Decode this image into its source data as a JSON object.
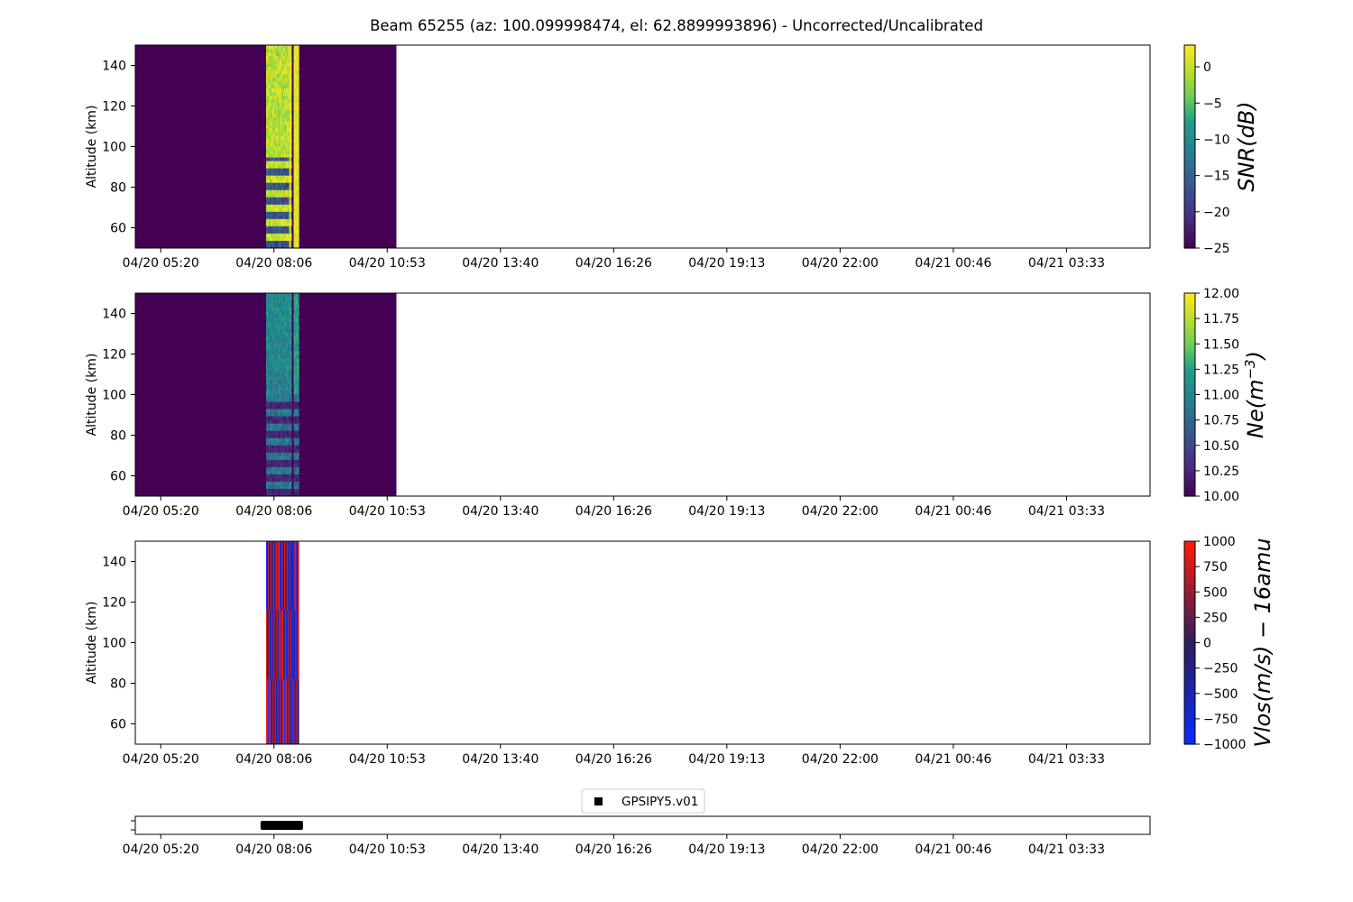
{
  "title": "Beam 65255 (az: 100.099998474, el: 62.8899993896) - Uncorrected/Uncalibrated",
  "colors": {
    "viridis_low": "#440154",
    "viridis_high": "#fde725",
    "vel_low": "#0a2cff",
    "vel_mid": "#2b1f5e",
    "vel_high": "#ff1a0a"
  },
  "chart_data": [
    {
      "type": "heatmap",
      "title": "",
      "ylabel": "Altitude (km)",
      "ylim": [
        50,
        150
      ],
      "yticks": [
        60,
        80,
        100,
        120,
        140
      ],
      "x_tick_labels": [
        "04/20 05:20",
        "04/20 08:06",
        "04/20 10:53",
        "04/20 13:40",
        "04/20 16:26",
        "04/20 19:13",
        "04/20 22:00",
        "04/21 00:46",
        "04/21 03:33"
      ],
      "xlim_hours": [
        -0.6,
        23.3
      ],
      "data_coverage_hours": [
        -0.6,
        5.55
      ],
      "signal_block_hours": [
        2.48,
        3.25
      ],
      "colorbar": {
        "label": "SNR(dB)",
        "colormap": "viridis",
        "range": [
          -25,
          3
        ],
        "ticks": [
          0,
          -5,
          -10,
          -15,
          -20,
          -25
        ],
        "tick_labels": [
          "0",
          "−5",
          "−10",
          "−15",
          "−20",
          "−25"
        ]
      }
    },
    {
      "type": "heatmap",
      "title": "",
      "ylabel": "Altitude (km)",
      "ylim": [
        50,
        150
      ],
      "yticks": [
        60,
        80,
        100,
        120,
        140
      ],
      "x_tick_labels": [
        "04/20 05:20",
        "04/20 08:06",
        "04/20 10:53",
        "04/20 13:40",
        "04/20 16:26",
        "04/20 19:13",
        "04/20 22:00",
        "04/21 00:46",
        "04/21 03:33"
      ],
      "xlim_hours": [
        -0.6,
        23.3
      ],
      "data_coverage_hours": [
        -0.6,
        5.55
      ],
      "signal_block_hours": [
        2.48,
        3.25
      ],
      "colorbar": {
        "label": "Ne(m−3)",
        "label_base": "Ne(m",
        "label_sup": "−3",
        "label_end": ")",
        "colormap": "viridis",
        "range": [
          10,
          12
        ],
        "ticks": [
          12,
          11.75,
          11.5,
          11.25,
          11,
          10.75,
          10.5,
          10.25,
          10
        ],
        "tick_labels": [
          "12.00",
          "11.75",
          "11.50",
          "11.25",
          "11.00",
          "10.75",
          "10.50",
          "10.25",
          "10.00"
        ]
      }
    },
    {
      "type": "heatmap",
      "title": "",
      "ylabel": "Altitude (km)",
      "ylim": [
        50,
        150
      ],
      "yticks": [
        60,
        80,
        100,
        120,
        140
      ],
      "x_tick_labels": [
        "04/20 05:20",
        "04/20 08:06",
        "04/20 10:53",
        "04/20 13:40",
        "04/20 16:26",
        "04/20 19:13",
        "04/20 22:00",
        "04/21 00:46",
        "04/21 03:33"
      ],
      "xlim_hours": [
        -0.6,
        23.3
      ],
      "signal_block_hours": [
        2.48,
        3.25
      ],
      "colorbar": {
        "label": "Vlos(m/s) − 16amu",
        "colormap": "blue-red",
        "range": [
          -1000,
          1000
        ],
        "ticks": [
          1000,
          750,
          500,
          250,
          0,
          -250,
          -500,
          -750,
          -1000
        ],
        "tick_labels": [
          "1000",
          "750",
          "500",
          "250",
          "0",
          "−250",
          "−500",
          "−750",
          "−1000"
        ]
      }
    },
    {
      "type": "scatter",
      "title": "",
      "legend": {
        "entries": [
          "GPSIPY5.v01"
        ],
        "placement": "top-center"
      },
      "x_tick_labels": [
        "04/20 05:20",
        "04/20 08:06",
        "04/20 10:53",
        "04/20 13:40",
        "04/20 16:26",
        "04/20 19:13",
        "04/20 22:00",
        "04/21 00:46",
        "04/21 03:33"
      ],
      "xlim_hours": [
        -0.6,
        23.3
      ],
      "points_hours": [
        2.35,
        3.35
      ]
    }
  ]
}
